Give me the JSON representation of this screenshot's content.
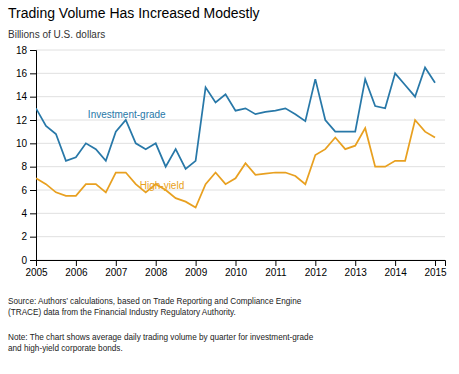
{
  "chart_data": {
    "type": "line",
    "title": "Trading Volume Has Increased Modestly",
    "ylabel": "Billions of U.S. dollars",
    "source": "Source: Authors’ calculations, based on Trade Reporting and Compliance Engine\n(TRACE) data from the Financial Industry Regulatory Authority.",
    "note": "Note: The chart shows average daily trading volume by quarter for investment-grade\nand high-yield corporate bonds.",
    "x": [
      2005.0,
      2005.25,
      2005.5,
      2005.75,
      2006.0,
      2006.25,
      2006.5,
      2006.75,
      2007.0,
      2007.25,
      2007.5,
      2007.75,
      2008.0,
      2008.25,
      2008.5,
      2008.75,
      2009.0,
      2009.25,
      2009.5,
      2009.75,
      2010.0,
      2010.25,
      2010.5,
      2010.75,
      2011.0,
      2011.25,
      2011.5,
      2011.75,
      2012.0,
      2012.25,
      2012.5,
      2012.75,
      2013.0,
      2013.25,
      2013.5,
      2013.75,
      2014.0,
      2014.25,
      2014.5,
      2014.75,
      2015.0
    ],
    "series": [
      {
        "color": "#2878a8",
        "values": [
          13.0,
          11.5,
          10.8,
          8.5,
          8.8,
          10.0,
          9.5,
          8.5,
          11.0,
          12.0,
          10.0,
          9.5,
          10.0,
          8.0,
          9.5,
          7.8,
          8.5,
          14.8,
          13.5,
          14.2,
          12.8,
          13.0,
          12.5,
          12.7,
          12.8,
          13.0,
          12.5,
          11.9,
          15.5,
          12.0,
          11.0,
          11.0,
          11.0,
          15.5,
          13.2,
          13.0,
          16.0,
          15.0,
          14.0,
          16.5,
          15.2
        ]
      },
      {
        "color": "#e8a020",
        "values": [
          7.0,
          6.5,
          5.8,
          5.5,
          5.5,
          6.5,
          6.5,
          5.8,
          7.5,
          7.5,
          6.5,
          5.8,
          6.5,
          6.0,
          5.3,
          5.0,
          4.5,
          6.5,
          7.5,
          6.5,
          7.0,
          8.3,
          7.3,
          7.4,
          7.5,
          7.5,
          7.2,
          6.5,
          9.0,
          9.5,
          10.5,
          9.5,
          9.8,
          11.3,
          8.0,
          8.0,
          8.5,
          8.5,
          12.0,
          11.0,
          10.5
        ]
      }
    ],
    "annotations": [
      {
        "text": "Investment-grade",
        "x": 2006.3,
        "y": 12.2,
        "color": "#2878a8"
      },
      {
        "text": "High-yield",
        "x": 2007.6,
        "y": 6.1,
        "color": "#e8a020"
      }
    ],
    "xlim": [
      2005.0,
      2015.25
    ],
    "ylim": [
      0,
      18
    ],
    "xticks": [
      2005,
      2006,
      2007,
      2008,
      2009,
      2010,
      2011,
      2012,
      2013,
      2014,
      2015
    ],
    "yticks": [
      0,
      2,
      4,
      6,
      8,
      10,
      12,
      14,
      16,
      18
    ],
    "grid": true
  }
}
